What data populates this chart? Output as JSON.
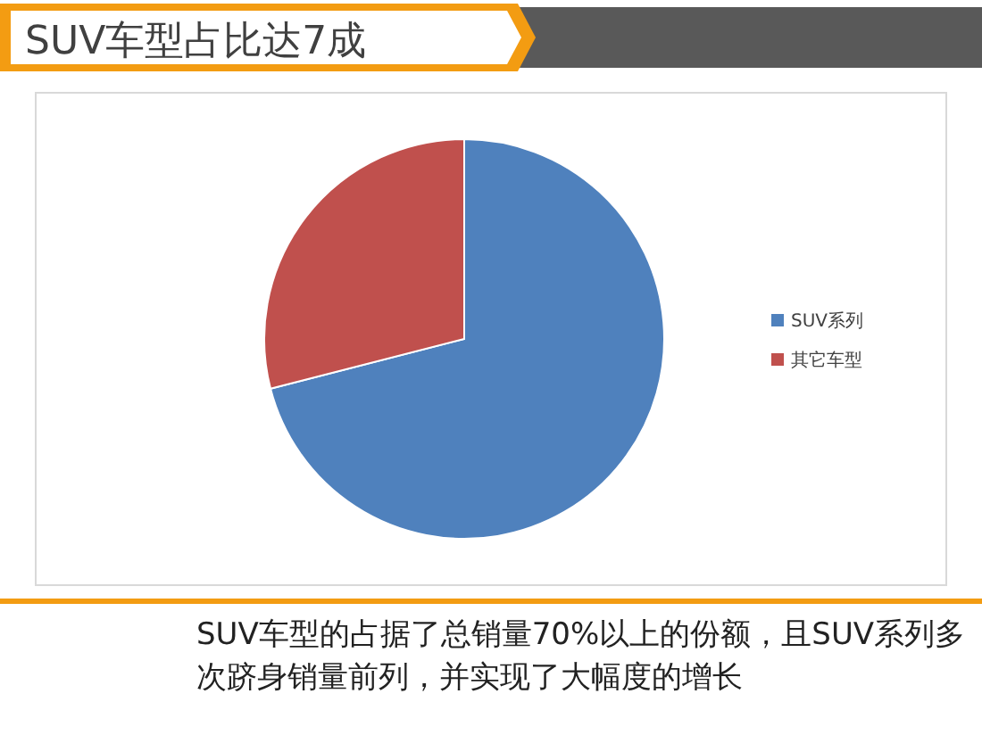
{
  "chart_data": {
    "type": "pie",
    "title": "SUV车型占比达7成",
    "categories": [
      "SUV系列",
      "其它车型"
    ],
    "values": [
      71,
      29
    ],
    "colors": [
      "#4f81bd",
      "#c0504d"
    ],
    "legend": "right",
    "annotations": [
      "SUV车型的占据了总销量70%以上的份额，且SUV系列多次跻身销量前列，并实现了大幅度的增长"
    ]
  }
}
